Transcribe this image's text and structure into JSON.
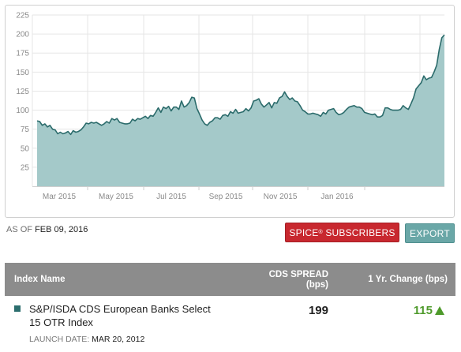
{
  "chart_data": {
    "type": "area",
    "title": "",
    "xlabel": "",
    "ylabel": "",
    "ylim": [
      0,
      225
    ],
    "yticks": [
      25,
      50,
      75,
      100,
      125,
      150,
      175,
      200,
      225
    ],
    "xticks": [
      "Mar 2015",
      "May 2015",
      "Jul 2015",
      "Sep 2015",
      "Nov 2015",
      "Jan 2016"
    ],
    "grid": true,
    "legend": "none",
    "series": [
      {
        "color": "#2b6b6b",
        "fill": "#a4c9c9",
        "values": [
          86,
          85,
          80,
          82,
          78,
          80,
          75,
          74,
          69,
          71,
          69,
          70,
          72,
          68,
          73,
          71,
          72,
          74,
          78,
          83,
          82,
          84,
          83,
          84,
          82,
          80,
          82,
          85,
          83,
          89,
          87,
          89,
          84,
          83,
          82,
          82,
          83,
          88,
          86,
          89,
          88,
          90,
          92,
          89,
          93,
          92,
          97,
          103,
          97,
          104,
          102,
          105,
          99,
          104,
          104,
          101,
          112,
          104,
          106,
          110,
          117,
          116,
          102,
          95,
          87,
          82,
          80,
          84,
          86,
          90,
          90,
          88,
          93,
          94,
          92,
          98,
          96,
          101,
          96,
          97,
          98,
          102,
          99,
          103,
          112,
          113,
          115,
          108,
          104,
          107,
          110,
          103,
          110,
          109,
          116,
          118,
          124,
          118,
          114,
          116,
          112,
          111,
          106,
          100,
          98,
          95,
          95,
          96,
          95,
          94,
          92,
          97,
          95,
          100,
          101,
          102,
          97,
          94,
          95,
          97,
          101,
          104,
          105,
          106,
          104,
          104,
          102,
          97,
          96,
          95,
          94,
          95,
          91,
          91,
          93,
          103,
          103,
          101,
          100,
          100,
          100,
          101,
          106,
          103,
          101,
          108,
          116,
          128,
          132,
          136,
          145,
          140,
          142,
          143,
          150,
          159,
          180,
          195,
          199
        ]
      }
    ]
  },
  "as_of": {
    "label": "AS OF",
    "date": "FEB 09, 2016"
  },
  "buttons": {
    "spice": "SPICE",
    "spice_mark": "®",
    "spice_suffix": " SUBSCRIBERS",
    "export": "EXPORT"
  },
  "table": {
    "headers": {
      "name": "Index Name",
      "spread_line1": "CDS SPREAD",
      "spread_line2": "(bps)",
      "change": "1 Yr. Change (bps)"
    },
    "row": {
      "name_line1": "S&P/ISDA CDS European Banks Select",
      "name_line2": "15 OTR Index",
      "launch_label": "LAUNCH DATE:",
      "launch_date": "MAR 20, 2012",
      "spread": "199",
      "change": "115",
      "change_color": "#4e9a2b",
      "marker_color": "#2c6e6e"
    }
  }
}
